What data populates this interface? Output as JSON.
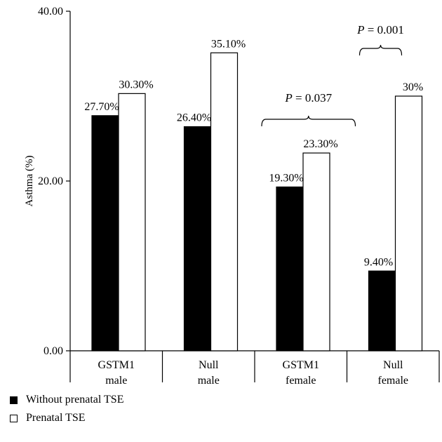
{
  "chart_data": {
    "type": "bar",
    "ylabel": "Asthma (%)",
    "xlabel": "",
    "title": "",
    "ylim": [
      0,
      40
    ],
    "y_ticks": [
      "0.00",
      "20.00",
      "40.00"
    ],
    "y_tick_values": [
      0,
      20,
      40
    ],
    "categories": [
      [
        "GSTM1",
        "male"
      ],
      [
        "Null",
        "male"
      ],
      [
        "GSTM1",
        "female"
      ],
      [
        "Null",
        "female"
      ]
    ],
    "series": [
      {
        "name": "Without prenatal TSE",
        "values": [
          27.7,
          26.4,
          19.3,
          9.4
        ],
        "labels": [
          "27.70%",
          "26.40%",
          "19.30%",
          "9.40%"
        ],
        "color": "#000000"
      },
      {
        "name": "Prenatal TSE",
        "values": [
          30.3,
          35.1,
          23.3,
          30
        ],
        "labels": [
          "30.30%",
          "35.10%",
          "23.30%",
          "30%"
        ],
        "color": "#ffffff"
      }
    ],
    "annotations": [
      {
        "prefix": "P",
        "text": " = 0.037",
        "group_from": 2,
        "group_to": 2,
        "span": "group"
      },
      {
        "prefix": "P",
        "text": " = 0.001",
        "group_from": 3,
        "group_to": 3,
        "span": "pair"
      }
    ],
    "grid": false,
    "legend_position": "bottom-left"
  },
  "legend": {
    "items": [
      {
        "label": "Without prenatal TSE",
        "color": "#000000"
      },
      {
        "label": "Prenatal TSE",
        "color": "#ffffff"
      }
    ]
  }
}
